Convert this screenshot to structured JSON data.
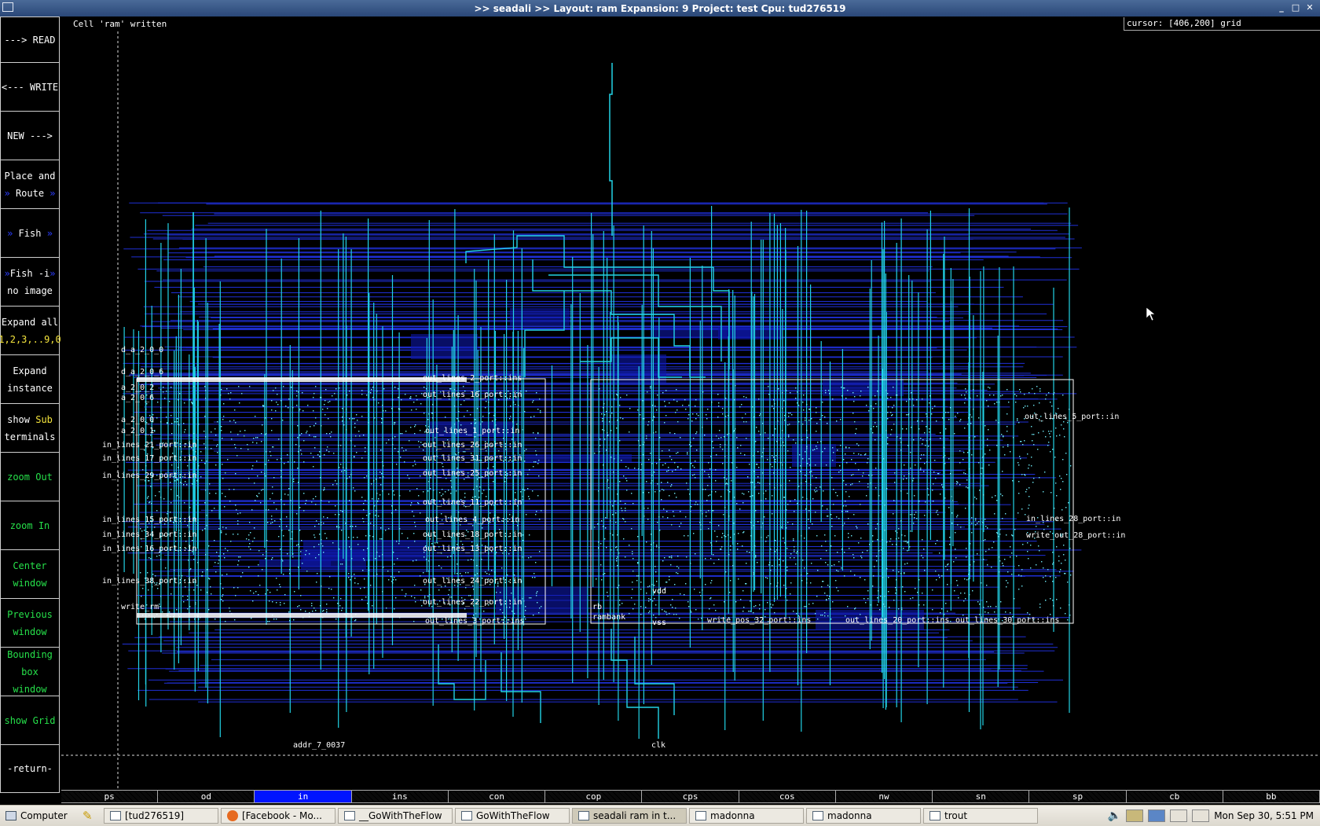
{
  "window": {
    "title": ">> seadali >>   Layout: ram  Expansion: 9  Project: test  Cpu: tud276519",
    "controls": [
      "_",
      "□",
      "✕"
    ]
  },
  "status": {
    "message": "Cell 'ram' written",
    "cursor_readout": "cursor: [406,200] grid"
  },
  "sidebar": {
    "read": "---> READ",
    "write": "<--- WRITE",
    "new": "NEW --->",
    "place_1": "Place and",
    "place_2": "Route",
    "fish": "Fish",
    "fishi_1": "Fish -i",
    "fishi_2": "no image",
    "expand_all": "Expand all",
    "expand_levels": "1,2,3,..9,0",
    "expand_inst_1": "Expand",
    "expand_inst_2": "instance",
    "show_sub_a": "show ",
    "show_sub_b": "Sub",
    "show_sub_2": "terminals",
    "zoom_out": "zoom Out",
    "zoom_in": "zoom In",
    "center_1": "Center",
    "center_2": "window",
    "prev_1": "Previous",
    "prev_2": "window",
    "bbox_1": "Bounding box",
    "bbox_2": "window",
    "show_grid": "show Grid",
    "return": "-return-"
  },
  "layout": {
    "labels_left": [
      "d_a_2_0_0",
      "d_a_2_0_6",
      "a_2_0_2",
      "a_2_0_6",
      "a_2_0_0",
      "a_2_0_1",
      "in_lines_21_port::in",
      "in_lines_17_port::in",
      "in_lines_29_port::in",
      "in_lines_15_port::in",
      "in_lines_34_port::in",
      "in_lines_16_port::in",
      "in_lines_38_port::in",
      "write_rm"
    ],
    "labels_mid": [
      "out_lines_2_port::ins",
      "out_lines_16_port::in",
      "out_lines_1_port::in",
      "out_lines_26_port::in",
      "out_lines_31_port::in",
      "out_lines_25_port::in",
      "out_lines_11_port::in",
      "out_lines_4_port::in",
      "out_lines_18_port::in",
      "out_lines_13_port::in",
      "out_lines_24_port::in",
      "out_lines_22_port::in",
      "out_lines_3_port::ins"
    ],
    "labels_right": [
      "out_lines_5_port::in",
      "in_lines_28_port::in",
      "write_out_28_port::in"
    ],
    "labels_bottom": [
      "vdd",
      "rb",
      "rambank",
      "vss",
      "write_pos_32_port::ins",
      "out_lines_20_port::ins",
      "out_lines_30_port::ins",
      "clk",
      "addr_7_0037"
    ]
  },
  "layers": [
    "ps",
    "od",
    "in",
    "ins",
    "con",
    "cop",
    "cps",
    "cos",
    "nw",
    "sn",
    "sp",
    "cb",
    "bb"
  ],
  "active_layer": "in",
  "taskbar": {
    "start": "Computer",
    "windows": [
      "[tud276519]",
      "[Facebook - Mo...",
      "__GoWithTheFlow",
      "GoWithTheFlow",
      "seadali  ram in t...",
      "madonna",
      "madonna",
      "trout"
    ],
    "active_window": "seadali  ram in t...",
    "clock": "Mon Sep 30,  5:51 PM"
  }
}
